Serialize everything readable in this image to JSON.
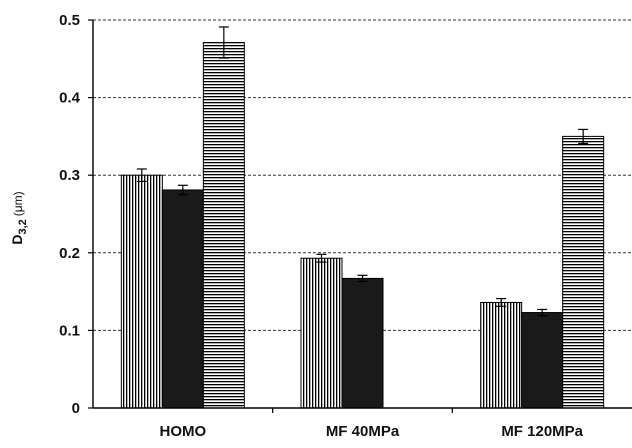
{
  "chart_data": {
    "type": "bar",
    "categories": [
      "HOMO",
      "MF 40MPa",
      "MF 120MPa"
    ],
    "series": [
      {
        "values": [
          0.3,
          0.193,
          0.136
        ],
        "errors": [
          0.008,
          0.005,
          0.005
        ],
        "pattern": "vertical-stripes",
        "color": "#000000"
      },
      {
        "values": [
          0.281,
          0.167,
          0.123
        ],
        "errors": [
          0.006,
          0.004,
          0.004
        ],
        "pattern": "solid",
        "color": "#1a1a1a"
      },
      {
        "values": [
          0.471,
          null,
          0.35
        ],
        "errors": [
          0.02,
          null,
          0.009
        ],
        "pattern": "horizontal-stripes",
        "color": "#000000"
      }
    ],
    "ylabel": {
      "main": "D",
      "subscript": "3,2",
      "unit": "(μm)"
    },
    "ylim": [
      0,
      0.5
    ],
    "yticks": [
      "0",
      "0.1",
      "0.2",
      "0.3",
      "0.4",
      "0.5"
    ],
    "ytick_values": [
      0,
      0.1,
      0.2,
      0.3,
      0.4,
      0.5
    ],
    "grid": "horizontal-dashed",
    "legend": "none"
  }
}
